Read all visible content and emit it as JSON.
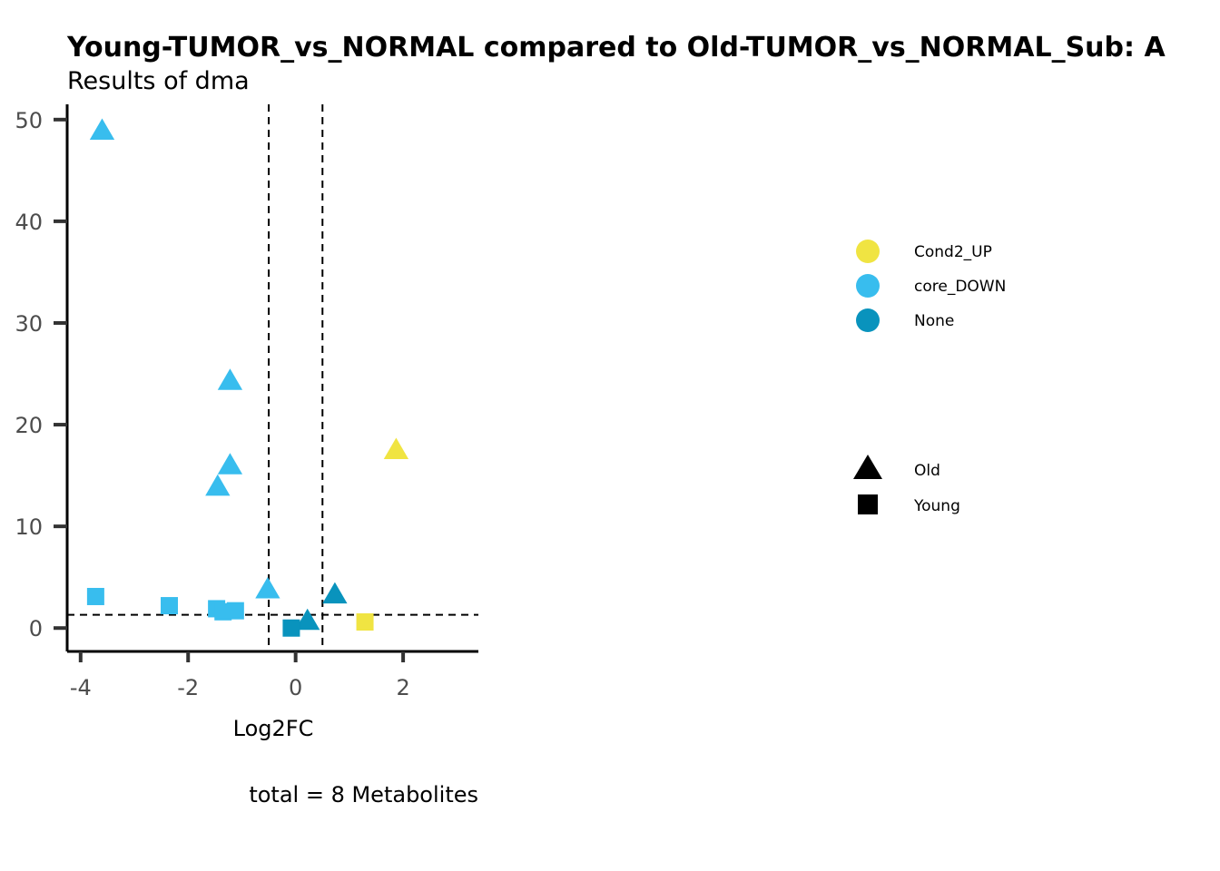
{
  "chart_data": {
    "type": "scatter",
    "title": "Young-TUMOR_vs_NORMAL compared to Old-TUMOR_vs_NORMAL_Sub: A",
    "subtitle": "Results of dma",
    "xlabel": "Log2FC",
    "ylabel": "",
    "caption": "total = 8 Metabolites",
    "xlim": [
      -4.25,
      3.4
    ],
    "ylim": [
      -2.3,
      51.5
    ],
    "x_ticks": [
      -4,
      -2,
      0,
      2
    ],
    "x_tick_labels": [
      "-4",
      "-2",
      "0",
      "2"
    ],
    "y_ticks": [
      0,
      10,
      20,
      30,
      40,
      50
    ],
    "y_tick_labels": [
      "0",
      "10",
      "20",
      "30",
      "40",
      "50"
    ],
    "vlines": [
      -0.5,
      0.5
    ],
    "hline": 1.3,
    "grid": false,
    "legend_position": "right",
    "color_legend": [
      {
        "label": "Cond2_UP",
        "color": "#F0E442"
      },
      {
        "label": "core_DOWN",
        "color": "#38BDEE"
      },
      {
        "label": "None",
        "color": "#0993BD"
      }
    ],
    "shape_legend": [
      {
        "label": "Old",
        "shape": "triangle"
      },
      {
        "label": "Young",
        "shape": "square"
      }
    ],
    "points": [
      {
        "x": -3.6,
        "y": 48.9,
        "group": "core_DOWN",
        "shape": "triangle"
      },
      {
        "x": -1.22,
        "y": 24.3,
        "group": "core_DOWN",
        "shape": "triangle"
      },
      {
        "x": -1.22,
        "y": 16.0,
        "group": "core_DOWN",
        "shape": "triangle"
      },
      {
        "x": -1.45,
        "y": 13.9,
        "group": "core_DOWN",
        "shape": "triangle"
      },
      {
        "x": -0.52,
        "y": 3.8,
        "group": "core_DOWN",
        "shape": "triangle"
      },
      {
        "x": 0.22,
        "y": 0.7,
        "group": "None",
        "shape": "triangle"
      },
      {
        "x": 0.73,
        "y": 3.3,
        "group": "None",
        "shape": "triangle"
      },
      {
        "x": 1.87,
        "y": 17.5,
        "group": "Cond2_UP",
        "shape": "triangle"
      },
      {
        "x": -3.72,
        "y": 3.1,
        "group": "core_DOWN",
        "shape": "square"
      },
      {
        "x": -2.35,
        "y": 2.2,
        "group": "core_DOWN",
        "shape": "square"
      },
      {
        "x": -1.47,
        "y": 1.9,
        "group": "core_DOWN",
        "shape": "square"
      },
      {
        "x": -1.35,
        "y": 1.6,
        "group": "core_DOWN",
        "shape": "square"
      },
      {
        "x": -1.12,
        "y": 1.7,
        "group": "core_DOWN",
        "shape": "square"
      },
      {
        "x": -0.08,
        "y": 0.0,
        "group": "None",
        "shape": "square"
      },
      {
        "x": 1.29,
        "y": 0.6,
        "group": "Cond2_UP",
        "shape": "square"
      }
    ]
  }
}
